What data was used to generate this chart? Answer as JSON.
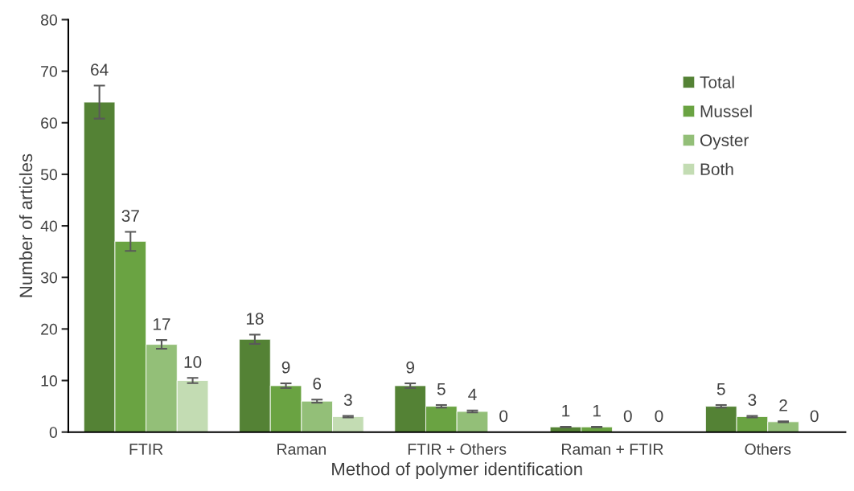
{
  "chart_data": {
    "type": "bar",
    "xlabel": "Method of polymer identification",
    "ylabel": "Number of articles",
    "categories": [
      "FTIR",
      "Raman",
      "FTIR + Others",
      "Raman + FTIR",
      "Others"
    ],
    "series": [
      {
        "name": "Total",
        "color": "#548235",
        "values": [
          64,
          18,
          9,
          1,
          5
        ],
        "errors": [
          3.2,
          0.9,
          0.45,
          0.05,
          0.25
        ]
      },
      {
        "name": "Mussel",
        "color": "#6aa342",
        "values": [
          37,
          9,
          5,
          1,
          3
        ],
        "errors": [
          1.85,
          0.45,
          0.25,
          0.05,
          0.15
        ]
      },
      {
        "name": "Oyster",
        "color": "#93bf78",
        "values": [
          17,
          6,
          4,
          0,
          2
        ],
        "errors": [
          0.85,
          0.3,
          0.2,
          null,
          0.1
        ]
      },
      {
        "name": "Both",
        "color": "#c3dcb3",
        "values": [
          10,
          3,
          0,
          0,
          0
        ],
        "errors": [
          0.5,
          0.15,
          null,
          null,
          null
        ]
      }
    ],
    "ylim": [
      0,
      80
    ],
    "yticks": [
      0,
      10,
      20,
      30,
      40,
      50,
      60,
      70,
      80
    ],
    "data_labels": true,
    "legend": "top right",
    "grid": false
  }
}
